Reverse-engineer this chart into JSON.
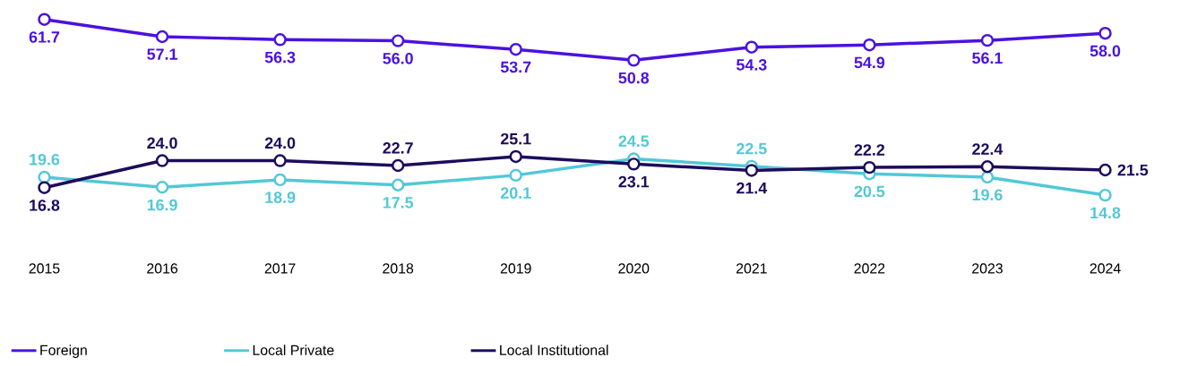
{
  "chart_data": {
    "type": "line",
    "categories": [
      "2015",
      "2016",
      "2017",
      "2018",
      "2019",
      "2020",
      "2021",
      "2022",
      "2023",
      "2024"
    ],
    "series": [
      {
        "name": "Foreign",
        "color": "#4a12e0",
        "values": [
          61.7,
          57.1,
          56.3,
          56.0,
          53.7,
          50.8,
          54.3,
          54.9,
          56.1,
          58.0
        ],
        "value_labels": [
          "61.7",
          "57.1",
          "56.3",
          "56.0",
          "53.7",
          "50.8",
          "54.3",
          "54.9",
          "56.1",
          "58.0"
        ]
      },
      {
        "name": "Local Private",
        "color": "#52c8d6",
        "values": [
          19.6,
          16.9,
          18.9,
          17.5,
          20.1,
          24.5,
          22.5,
          20.5,
          19.6,
          14.8
        ],
        "value_labels": [
          "19.6",
          "16.9",
          "18.9",
          "17.5",
          "20.1",
          "24.5",
          "22.5",
          "20.5",
          "19.6",
          "14.8"
        ]
      },
      {
        "name": "Local Institutional",
        "color": "#1c0c5c",
        "values": [
          16.8,
          24.0,
          24.0,
          22.7,
          25.1,
          23.1,
          21.4,
          22.2,
          22.4,
          21.5
        ],
        "value_labels": [
          "16.8",
          "24.0",
          "24.0",
          "22.7",
          "25.1",
          "23.1",
          "21.4",
          "22.2",
          "22.4",
          "21.5"
        ]
      }
    ],
    "marker": "circle",
    "line_style": "solid",
    "legend": "bottom"
  }
}
